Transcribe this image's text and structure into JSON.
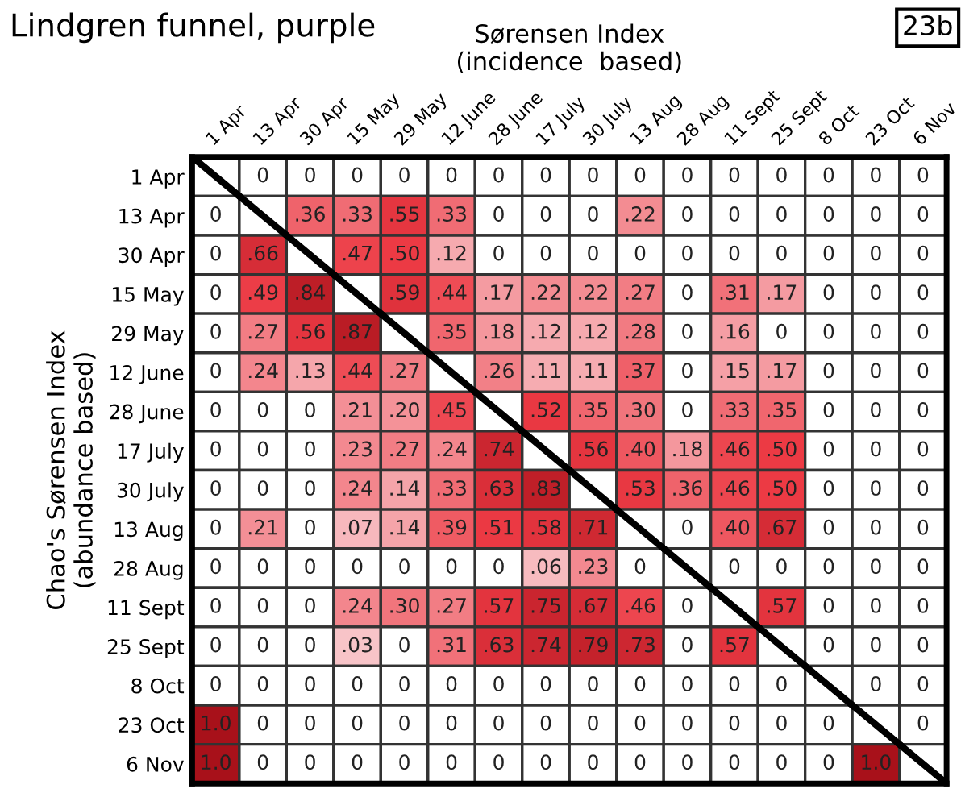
{
  "chart_data": {
    "type": "heatmap",
    "title": "Lindgren funnel, purple",
    "xlabel": "Sørensen Index\n(incidence  based)",
    "ylabel": "Chao's Sørensen Index\n(abundance based)",
    "annotations": [
      "23b"
    ],
    "categories": [
      "1 Apr",
      "13 Apr",
      "30 Apr",
      "15 May",
      "29 May",
      "12 June",
      "28 June",
      "17 July",
      "30 July",
      "13 Aug",
      "28 Aug",
      "11 Sept",
      "25 Sept",
      "8 Oct",
      "23 Oct",
      "6 Nov"
    ],
    "y_categories": [
      "1 Apr",
      "13 Apr",
      "30 Apr",
      "15 May",
      "29 May",
      "12 June",
      "28 June",
      "17 July",
      "30 July",
      "13 Aug",
      "28 Aug",
      "11 Sept",
      "25 Sept",
      "8 Oct",
      "23 Oct",
      "6 Nov"
    ],
    "cells": [
      [
        null,
        0,
        0,
        0,
        0,
        0,
        0,
        0,
        0,
        0,
        0,
        0,
        0,
        0,
        0,
        0
      ],
      [
        0,
        null,
        0.36,
        0.33,
        0.55,
        0.33,
        0,
        0,
        0,
        0.22,
        0,
        0,
        0,
        0,
        0,
        0
      ],
      [
        0,
        0.66,
        null,
        0.47,
        0.5,
        0.12,
        0,
        0,
        0,
        0,
        0,
        0,
        0,
        0,
        0,
        0
      ],
      [
        0,
        0.49,
        0.84,
        null,
        0.59,
        0.44,
        0.17,
        0.22,
        0.22,
        0.27,
        0,
        0.31,
        0.17,
        0,
        0,
        0
      ],
      [
        0,
        0.27,
        0.56,
        0.87,
        null,
        0.35,
        0.18,
        0.12,
        0.12,
        0.28,
        0,
        0.16,
        0,
        0,
        0,
        0
      ],
      [
        0,
        0.24,
        0.13,
        0.44,
        0.27,
        null,
        0.26,
        0.11,
        0.11,
        0.37,
        0,
        0.15,
        0.17,
        0,
        0,
        0
      ],
      [
        0,
        0,
        0,
        0.21,
        0.2,
        0.45,
        null,
        0.52,
        0.35,
        0.3,
        0,
        0.33,
        0.35,
        0,
        0,
        0
      ],
      [
        0,
        0,
        0,
        0.23,
        0.27,
        0.24,
        0.74,
        null,
        0.56,
        0.4,
        0.18,
        0.46,
        0.5,
        0,
        0,
        0
      ],
      [
        0,
        0,
        0,
        0.24,
        0.14,
        0.33,
        0.63,
        0.83,
        null,
        0.53,
        0.36,
        0.46,
        0.5,
        0,
        0,
        0
      ],
      [
        0,
        0.21,
        0,
        0.07,
        0.14,
        0.39,
        0.51,
        0.58,
        0.71,
        null,
        0,
        0.4,
        0.67,
        0,
        0,
        0
      ],
      [
        0,
        0,
        0,
        0,
        0,
        0,
        0,
        0.06,
        0.23,
        0,
        null,
        0,
        0,
        0,
        0,
        0
      ],
      [
        0,
        0,
        0,
        0.24,
        0.3,
        0.27,
        0.57,
        0.75,
        0.67,
        0.46,
        0,
        null,
        0.57,
        0,
        0,
        0
      ],
      [
        0,
        0,
        0,
        0.03,
        0,
        0.31,
        0.63,
        0.74,
        0.79,
        0.73,
        0,
        0.57,
        null,
        0,
        0,
        0
      ],
      [
        0,
        0,
        0,
        0,
        0,
        0,
        0,
        0,
        0,
        0,
        0,
        0,
        0,
        null,
        0,
        0
      ],
      [
        1.0,
        0,
        0,
        0,
        0,
        0,
        0,
        0,
        0,
        0,
        0,
        0,
        0,
        0,
        null,
        0
      ],
      [
        1.0,
        0,
        0,
        0,
        0,
        0,
        0,
        0,
        0,
        0,
        0,
        0,
        0,
        0,
        1.0,
        null
      ]
    ],
    "cell_labels": [
      [
        null,
        "0",
        "0",
        "0",
        "0",
        "0",
        "0",
        "0",
        "0",
        "0",
        "0",
        "0",
        "0",
        "0",
        "0",
        "0"
      ],
      [
        "0",
        null,
        ".36",
        ".33",
        ".55",
        ".33",
        "0",
        "0",
        "0",
        ".22",
        "0",
        "0",
        "0",
        "0",
        "0",
        "0"
      ],
      [
        "0",
        ".66",
        null,
        ".47",
        ".50",
        ".12",
        "0",
        "0",
        "0",
        "0",
        "0",
        "0",
        "0",
        "0",
        "0",
        "0"
      ],
      [
        "0",
        ".49",
        ".84",
        null,
        ".59",
        ".44",
        ".17",
        ".22",
        ".22",
        ".27",
        "0",
        ".31",
        ".17",
        "0",
        "0",
        "0"
      ],
      [
        "0",
        ".27",
        ".56",
        ".87",
        null,
        ".35",
        ".18",
        ".12",
        ".12",
        ".28",
        "0",
        ".16",
        "0",
        "0",
        "0",
        "0"
      ],
      [
        "0",
        ".24",
        ".13",
        ".44",
        ".27",
        null,
        ".26",
        ".11",
        ".11",
        ".37",
        "0",
        ".15",
        ".17",
        "0",
        "0",
        "0"
      ],
      [
        "0",
        "0",
        "0",
        ".21",
        ".20",
        ".45",
        null,
        ".52",
        ".35",
        ".30",
        "0",
        ".33",
        ".35",
        "0",
        "0",
        "0"
      ],
      [
        "0",
        "0",
        "0",
        ".23",
        ".27",
        ".24",
        ".74",
        null,
        ".56",
        ".40",
        ".18",
        ".46",
        ".50",
        "0",
        "0",
        "0"
      ],
      [
        "0",
        "0",
        "0",
        ".24",
        ".14",
        ".33",
        ".63",
        ".83",
        null,
        ".53",
        ".36",
        ".46",
        ".50",
        "0",
        "0",
        "0"
      ],
      [
        "0",
        ".21",
        "0",
        ".07",
        ".14",
        ".39",
        ".51",
        ".58",
        ".71",
        null,
        "0",
        ".40",
        ".67",
        "0",
        "0",
        "0"
      ],
      [
        "0",
        "0",
        "0",
        "0",
        "0",
        "0",
        "0",
        ".06",
        ".23",
        "0",
        null,
        "0",
        "0",
        "0",
        "0",
        "0"
      ],
      [
        "0",
        "0",
        "0",
        ".24",
        ".30",
        ".27",
        ".57",
        ".75",
        ".67",
        ".46",
        "0",
        null,
        ".57",
        "0",
        "0",
        "0"
      ],
      [
        "0",
        "0",
        "0",
        ".03",
        "0",
        ".31",
        ".63",
        ".74",
        ".79",
        ".73",
        "0",
        ".57",
        null,
        "0",
        "0",
        "0"
      ],
      [
        "0",
        "0",
        "0",
        "0",
        "0",
        "0",
        "0",
        "0",
        "0",
        "0",
        "0",
        "0",
        "0",
        null,
        "0",
        "0"
      ],
      [
        "1.0",
        "0",
        "0",
        "0",
        "0",
        "0",
        "0",
        "0",
        "0",
        "0",
        "0",
        "0",
        "0",
        "0",
        null,
        "0"
      ],
      [
        "1.0",
        "0",
        "0",
        "0",
        "0",
        "0",
        "0",
        "0",
        "0",
        "0",
        "0",
        "0",
        "0",
        "0",
        "1.0",
        null
      ]
    ]
  }
}
